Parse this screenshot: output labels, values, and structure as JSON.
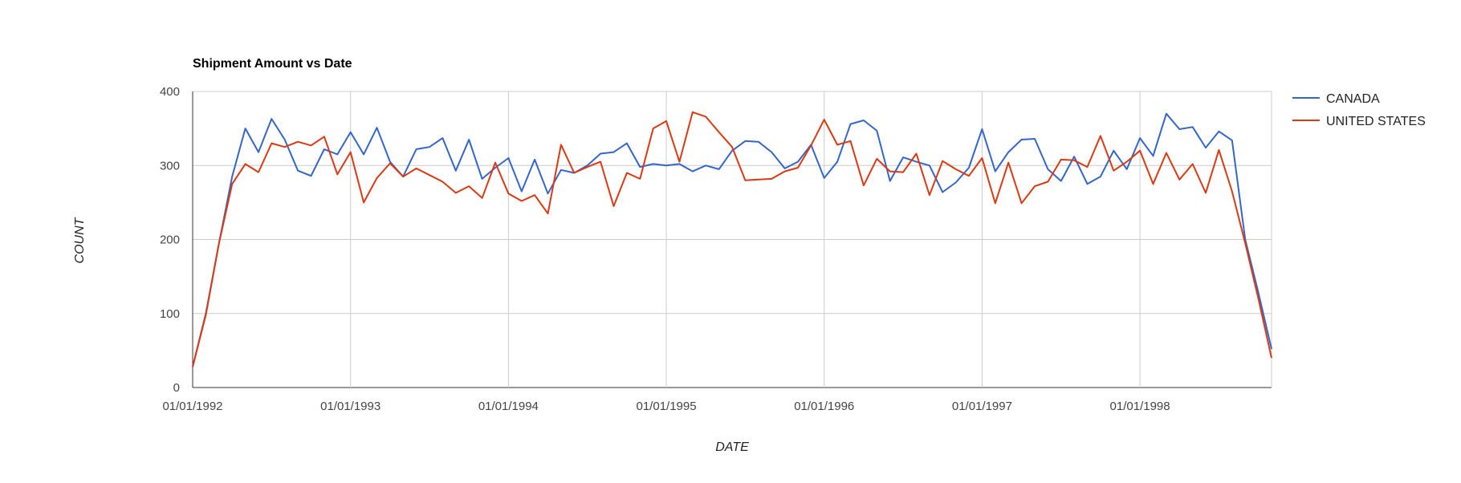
{
  "chart_data": {
    "type": "line",
    "title": "Shipment Amount vs Date",
    "xlabel": "DATE",
    "ylabel": "COUNT",
    "xlim": [
      "1992-01-01",
      "1998-11-01"
    ],
    "ylim": [
      0,
      400
    ],
    "yticks": [
      0,
      100,
      200,
      300,
      400
    ],
    "xticks": [
      {
        "date": "1992-01-01",
        "label": "01/01/1992"
      },
      {
        "date": "1993-01-01",
        "label": "01/01/1993"
      },
      {
        "date": "1994-01-01",
        "label": "01/01/1994"
      },
      {
        "date": "1995-01-01",
        "label": "01/01/1995"
      },
      {
        "date": "1996-01-01",
        "label": "01/01/1996"
      },
      {
        "date": "1997-01-01",
        "label": "01/01/1997"
      },
      {
        "date": "1998-01-01",
        "label": "01/01/1998"
      }
    ],
    "grid": true,
    "legend": "right",
    "x_start": "1992-01",
    "x_step": "1 month",
    "series": [
      {
        "name": "CANADA",
        "color": "#3366cc",
        "values": [
          28,
          100,
          195,
          285,
          350,
          318,
          363,
          335,
          293,
          286,
          322,
          315,
          345,
          315,
          351,
          305,
          285,
          322,
          325,
          337,
          293,
          335,
          282,
          297,
          310,
          265,
          308,
          262,
          294,
          290,
          300,
          316,
          318,
          330,
          298,
          302,
          300,
          302,
          292,
          300,
          295,
          320,
          333,
          332,
          318,
          296,
          305,
          328,
          283,
          305,
          356,
          361,
          347,
          279,
          311,
          305,
          300,
          264,
          277,
          297,
          349,
          292,
          318,
          335,
          336,
          295,
          279,
          312,
          275,
          285,
          320,
          295,
          337,
          313,
          370,
          349,
          352,
          324,
          346,
          334,
          200,
          128,
          52
        ]
      },
      {
        "name": "UNITED STATES",
        "color": "#dc3912",
        "values": [
          28,
          98,
          195,
          275,
          302,
          291,
          330,
          325,
          332,
          327,
          339,
          288,
          318,
          250,
          283,
          303,
          285,
          296,
          287,
          278,
          263,
          272,
          256,
          304,
          262,
          252,
          260,
          235,
          328,
          290,
          298,
          305,
          245,
          290,
          282,
          350,
          360,
          305,
          372,
          366,
          345,
          325,
          280,
          281,
          282,
          292,
          297,
          327,
          362,
          328,
          333,
          273,
          309,
          292,
          291,
          316,
          260,
          306,
          295,
          286,
          310,
          249,
          304,
          249,
          272,
          278,
          308,
          307,
          298,
          340,
          293,
          305,
          320,
          275,
          317,
          281,
          302,
          263,
          321,
          265,
          195,
          120,
          40
        ]
      }
    ]
  }
}
